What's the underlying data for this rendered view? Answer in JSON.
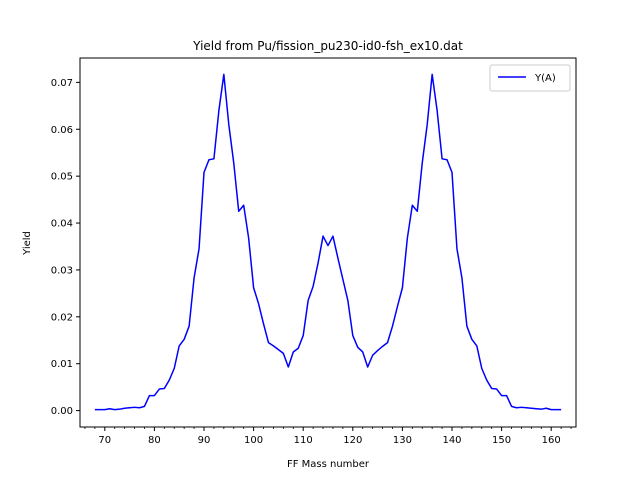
{
  "chart_data": {
    "type": "line",
    "title": "Yield from  Pu/fission_pu230-id0-fsh_ex10.dat",
    "xlabel": "FF Mass number",
    "ylabel": "Yield",
    "xlim": [
      65,
      165
    ],
    "ylim": [
      -0.0035,
      0.0752
    ],
    "xticks": [
      70,
      80,
      90,
      100,
      110,
      120,
      130,
      140,
      150,
      160
    ],
    "yticks": [
      0.0,
      0.01,
      0.02,
      0.03,
      0.04,
      0.05,
      0.06,
      0.07
    ],
    "ytick_labels": [
      "0.00",
      "0.01",
      "0.02",
      "0.03",
      "0.04",
      "0.05",
      "0.06",
      "0.07"
    ],
    "xminor_step": 2,
    "grid": false,
    "legend_position": "top-right",
    "series": [
      {
        "name": "Y(A)",
        "color": "#0000ff",
        "x": [
          68,
          69,
          70,
          71,
          72,
          73,
          74,
          75,
          76,
          77,
          78,
          79,
          80,
          81,
          82,
          83,
          84,
          85,
          86,
          87,
          88,
          89,
          90,
          91,
          92,
          93,
          94,
          95,
          96,
          97,
          98,
          99,
          100,
          101,
          102,
          103,
          104,
          105,
          106,
          107,
          108,
          109,
          110,
          111,
          112,
          113,
          114,
          115,
          116,
          117,
          118,
          119,
          120,
          121,
          122,
          123,
          124,
          125,
          126,
          127,
          128,
          129,
          130,
          131,
          132,
          133,
          134,
          135,
          136,
          137,
          138,
          139,
          140,
          141,
          142,
          143,
          144,
          145,
          146,
          147,
          148,
          149,
          150,
          151,
          152,
          153,
          154,
          155,
          156,
          157,
          158,
          159,
          160,
          161,
          162
        ],
        "y": [
          0.0002,
          0.0002,
          0.0002,
          0.0004,
          0.0002,
          0.0003,
          0.0005,
          0.0006,
          0.0007,
          0.0006,
          0.0009,
          0.0032,
          0.0032,
          0.0046,
          0.0047,
          0.0065,
          0.009,
          0.0138,
          0.0152,
          0.018,
          0.0283,
          0.0345,
          0.0508,
          0.0535,
          0.0537,
          0.064,
          0.0717,
          0.061,
          0.0528,
          0.0425,
          0.0438,
          0.0368,
          0.0262,
          0.0228,
          0.0185,
          0.0145,
          0.0138,
          0.013,
          0.0122,
          0.0093,
          0.0125,
          0.0133,
          0.016,
          0.0235,
          0.0265,
          0.0315,
          0.0372,
          0.0352,
          0.0372,
          0.0325,
          0.028,
          0.0235,
          0.016,
          0.0135,
          0.0125,
          0.0093,
          0.0118,
          0.0128,
          0.0137,
          0.0145,
          0.018,
          0.0222,
          0.0262,
          0.0368,
          0.0438,
          0.0425,
          0.0528,
          0.061,
          0.0717,
          0.064,
          0.0537,
          0.0535,
          0.0508,
          0.0345,
          0.0283,
          0.018,
          0.0152,
          0.0138,
          0.009,
          0.0065,
          0.0047,
          0.0046,
          0.0032,
          0.0032,
          0.0009,
          0.0006,
          0.0007,
          0.0006,
          0.0005,
          0.0004,
          0.0003,
          0.0005,
          0.0002,
          0.0002,
          0.0002
        ]
      }
    ]
  }
}
